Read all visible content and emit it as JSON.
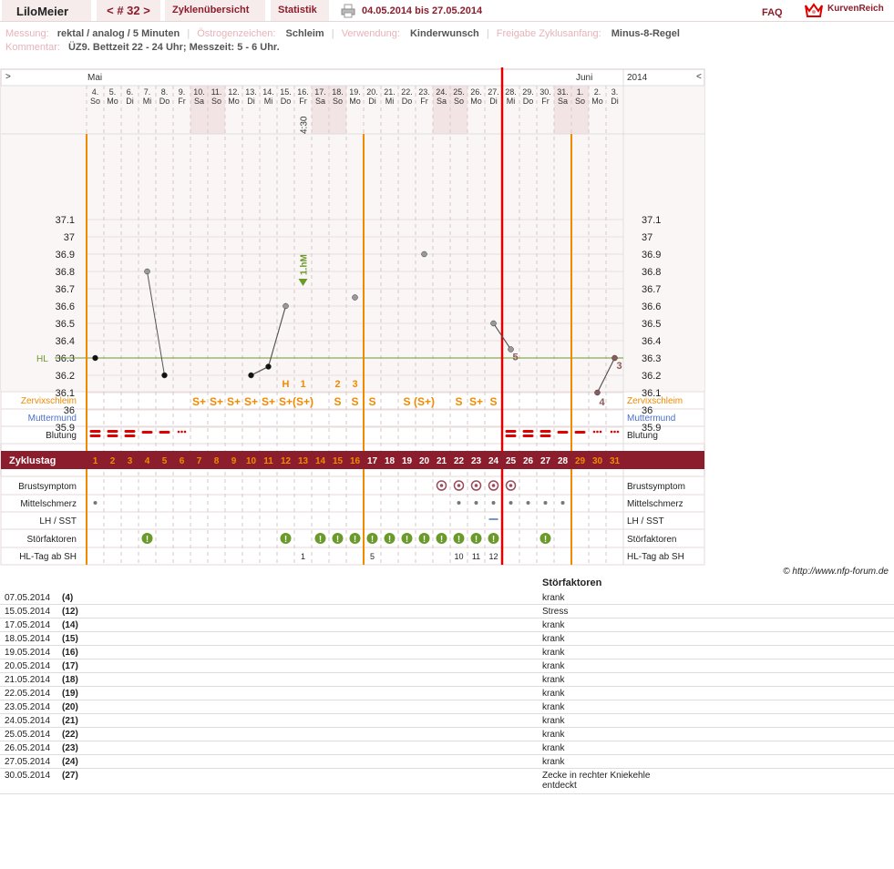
{
  "header": {
    "username": "LiloMeier",
    "cycle_nav": "< # 32 >",
    "tab_overview": "Zyklenübersicht",
    "tab_stats": "Statistik",
    "daterange": "04.05.2014 bis 27.05.2014",
    "faq": "FAQ",
    "brand": "KurvenReich"
  },
  "meta": {
    "messung_label": "Messung:",
    "messung_value": "rektal / analog / 5 Minuten",
    "oestrogen_label": "Östrogenzeichen:",
    "oestrogen_value": "Schleim",
    "verwendung_label": "Verwendung:",
    "verwendung_value": "Kinderwunsch",
    "freigabe_label": "Freigabe Zyklusanfang:",
    "freigabe_value": "Minus-8-Regel",
    "kommentar_label": "Kommentar:",
    "kommentar_value": "ÜZ9. Bettzeit 22 - 24 Uhr; Messzeit: 5 - 6 Uhr."
  },
  "chart": {
    "nav_left": ">",
    "nav_right": "<",
    "month1": "Mai",
    "month2": "Juni",
    "year": "2014",
    "time_note": "4:30",
    "hl_label": "HL",
    "hm_label": "1.hM",
    "days": [
      {
        "d": "4.",
        "w": "So"
      },
      {
        "d": "5.",
        "w": "Mo"
      },
      {
        "d": "6.",
        "w": "Di"
      },
      {
        "d": "7.",
        "w": "Mi"
      },
      {
        "d": "8.",
        "w": "Do"
      },
      {
        "d": "9.",
        "w": "Fr"
      },
      {
        "d": "10.",
        "w": "Sa"
      },
      {
        "d": "11.",
        "w": "So"
      },
      {
        "d": "12.",
        "w": "Mo"
      },
      {
        "d": "13.",
        "w": "Di"
      },
      {
        "d": "14.",
        "w": "Mi"
      },
      {
        "d": "15.",
        "w": "Do"
      },
      {
        "d": "16.",
        "w": "Fr"
      },
      {
        "d": "17.",
        "w": "Sa"
      },
      {
        "d": "18.",
        "w": "So"
      },
      {
        "d": "19.",
        "w": "Mo"
      },
      {
        "d": "20.",
        "w": "Di"
      },
      {
        "d": "21.",
        "w": "Mi"
      },
      {
        "d": "22.",
        "w": "Do"
      },
      {
        "d": "23.",
        "w": "Fr"
      },
      {
        "d": "24.",
        "w": "Sa"
      },
      {
        "d": "25.",
        "w": "So"
      },
      {
        "d": "26.",
        "w": "Mo"
      },
      {
        "d": "27.",
        "w": "Di"
      },
      {
        "d": "28.",
        "w": "Mi"
      },
      {
        "d": "29.",
        "w": "Do"
      },
      {
        "d": "30.",
        "w": "Fr"
      },
      {
        "d": "31.",
        "w": "Sa"
      },
      {
        "d": "1.",
        "w": "So"
      },
      {
        "d": "2.",
        "w": "Mo"
      },
      {
        "d": "3.",
        "w": "Di"
      }
    ],
    "yticks": [
      "37.1",
      "37",
      "36.9",
      "36.8",
      "36.7",
      "36.6",
      "36.5",
      "36.4",
      "36.3",
      "36.2",
      "36.1",
      "36",
      "35.9"
    ],
    "temps": [
      {
        "day": 1,
        "t": 36.3,
        "kind": "in"
      },
      {
        "day": 4,
        "t": 36.8,
        "kind": "out"
      },
      {
        "day": 5,
        "t": 36.2,
        "kind": "in"
      },
      {
        "day": 10,
        "t": 36.2,
        "kind": "in"
      },
      {
        "day": 11,
        "t": 36.25,
        "kind": "in"
      },
      {
        "day": 12,
        "t": 36.6,
        "kind": "out"
      },
      {
        "day": 16,
        "t": 36.65,
        "kind": "out"
      },
      {
        "day": 20,
        "t": 36.9,
        "kind": "out"
      },
      {
        "day": 24,
        "t": 36.5,
        "kind": "out"
      },
      {
        "day": 25,
        "t": 36.35,
        "kind": "out"
      },
      {
        "day": 30,
        "t": 36.1,
        "kind": "post"
      },
      {
        "day": 31,
        "t": 36.3,
        "kind": "post"
      }
    ],
    "temp_labels": [
      {
        "day": 25,
        "label": "5"
      },
      {
        "day": 30,
        "label": "4"
      },
      {
        "day": 31,
        "label": "3"
      }
    ],
    "hl_temp": 36.3,
    "top_marks": [
      {
        "day": 12,
        "label": "H"
      },
      {
        "day": 13,
        "label": "1"
      },
      {
        "day": 15,
        "label": "2"
      },
      {
        "day": 16,
        "label": "3"
      }
    ],
    "rows": {
      "zervix": "Zervixschleim",
      "muttermund": "Muttermund",
      "blutung": "Blutung",
      "zyklustag": "Zyklustag",
      "brust": "Brustsymptom",
      "mittel": "Mittelschmerz",
      "lh": "LH / SST",
      "stoer": "Störfaktoren",
      "hltag": "HL-Tag ab SH"
    },
    "zervix_marks": [
      "",
      "",
      "",
      "",
      "",
      "",
      "S+",
      "S+",
      "S+",
      "S+",
      "S+",
      "S+",
      "(S+)",
      "",
      "S",
      "S",
      "S",
      "",
      "S",
      "(S+)",
      "",
      "S",
      "S+",
      "S",
      "",
      "",
      "",
      "",
      "",
      "",
      ""
    ],
    "bleeding": [
      3,
      3,
      3,
      2,
      2,
      1,
      0,
      0,
      0,
      0,
      0,
      0,
      0,
      0,
      0,
      0,
      0,
      0,
      0,
      0,
      0,
      0,
      0,
      0,
      3,
      3,
      3,
      2,
      2,
      1,
      1
    ],
    "cycle_days": [
      "1",
      "2",
      "3",
      "4",
      "5",
      "6",
      "7",
      "8",
      "9",
      "10",
      "11",
      "12",
      "13",
      "14",
      "15",
      "16",
      "17",
      "18",
      "19",
      "20",
      "21",
      "22",
      "23",
      "24",
      "25",
      "26",
      "27",
      "28",
      "29",
      "30",
      "31"
    ],
    "brust_days": [
      21,
      22,
      23,
      24,
      25
    ],
    "mittel_days": [
      1,
      22,
      23,
      24,
      25,
      26,
      27,
      28
    ],
    "lh_days": [
      24
    ],
    "stoer_days": [
      4,
      12,
      14,
      15,
      16,
      17,
      18,
      19,
      20,
      21,
      22,
      23,
      24,
      27
    ],
    "hltag_values": [
      {
        "day": 13,
        "v": "1"
      },
      {
        "day": 17,
        "v": "5"
      },
      {
        "day": 22,
        "v": "10"
      },
      {
        "day": 23,
        "v": "11"
      },
      {
        "day": 24,
        "v": "12"
      }
    ],
    "shade_days": [
      7,
      8,
      14,
      15,
      21,
      22,
      28,
      29
    ],
    "orange_lines_after": [
      0,
      16,
      28
    ],
    "red_line_after": 24,
    "colors": {
      "accent": "#8b1d2c",
      "orange": "#f08a00",
      "red": "#e00000",
      "green": "#6a9a2a",
      "blue": "#4a6fc8",
      "grid": "#d8c8c8",
      "shade": "#f2e4e4",
      "row_bg": "#fbf6f6"
    }
  },
  "copyright": "© http://www.nfp-forum.de",
  "stoer_table": {
    "header": "Störfaktoren",
    "rows": [
      {
        "date": "07.05.2014",
        "num": "(4)",
        "reason": "krank"
      },
      {
        "date": "15.05.2014",
        "num": "(12)",
        "reason": "Stress"
      },
      {
        "date": "17.05.2014",
        "num": "(14)",
        "reason": "krank"
      },
      {
        "date": "18.05.2014",
        "num": "(15)",
        "reason": "krank"
      },
      {
        "date": "19.05.2014",
        "num": "(16)",
        "reason": "krank"
      },
      {
        "date": "20.05.2014",
        "num": "(17)",
        "reason": "krank"
      },
      {
        "date": "21.05.2014",
        "num": "(18)",
        "reason": "krank"
      },
      {
        "date": "22.05.2014",
        "num": "(19)",
        "reason": "krank"
      },
      {
        "date": "23.05.2014",
        "num": "(20)",
        "reason": "krank"
      },
      {
        "date": "24.05.2014",
        "num": "(21)",
        "reason": "krank"
      },
      {
        "date": "25.05.2014",
        "num": "(22)",
        "reason": "krank"
      },
      {
        "date": "26.05.2014",
        "num": "(23)",
        "reason": "krank"
      },
      {
        "date": "27.05.2014",
        "num": "(24)",
        "reason": "krank"
      },
      {
        "date": "30.05.2014",
        "num": "(27)",
        "reason": "Zecke in rechter Kniekehle entdeckt"
      }
    ]
  }
}
